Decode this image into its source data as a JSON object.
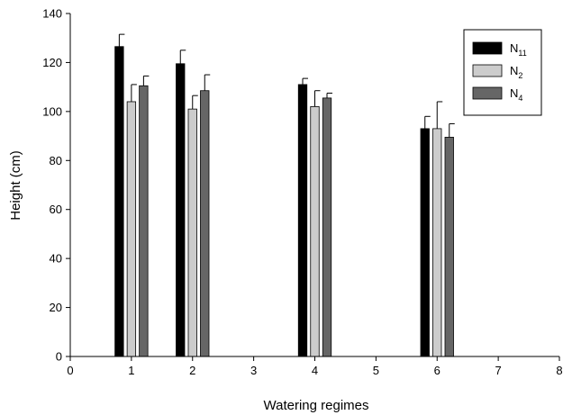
{
  "chart_data": {
    "type": "bar",
    "title": "",
    "xlabel": "Watering regimes",
    "ylabel": "Height (cm)",
    "xlim": [
      0,
      8
    ],
    "ylim": [
      0,
      140
    ],
    "x_ticks": [
      0,
      1,
      2,
      3,
      4,
      5,
      6,
      7,
      8
    ],
    "y_ticks": [
      0,
      20,
      40,
      60,
      80,
      100,
      120,
      140
    ],
    "grid": false,
    "legend_position": "top-right",
    "x": [
      1,
      2,
      4,
      6
    ],
    "series": [
      {
        "name": "N11",
        "label_base": "N",
        "label_sub": "11",
        "color": "#000000",
        "values": [
          126.5,
          119.5,
          111.0,
          93.0
        ],
        "errors": [
          5.0,
          5.5,
          2.5,
          5.0
        ]
      },
      {
        "name": "N2",
        "label_base": "N",
        "label_sub": "2",
        "color": "#cccccc",
        "values": [
          104.0,
          101.0,
          102.0,
          93.0
        ],
        "errors": [
          7.0,
          5.5,
          6.5,
          11.0
        ]
      },
      {
        "name": "N4",
        "label_base": "N",
        "label_sub": "4",
        "color": "#666666",
        "values": [
          110.5,
          108.5,
          105.5,
          89.5
        ],
        "errors": [
          4.0,
          6.5,
          2.0,
          5.5
        ]
      }
    ]
  }
}
